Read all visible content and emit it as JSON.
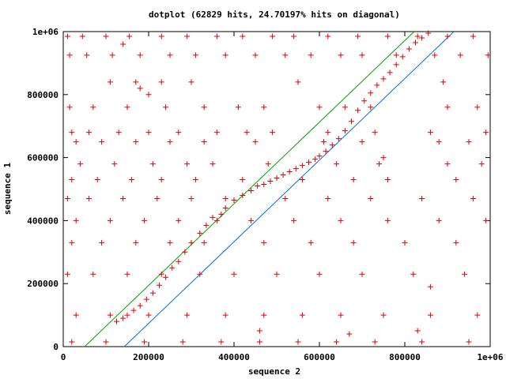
{
  "chart_data": {
    "type": "scatter",
    "title": "dotplot (62829 hits, 24.70197% hits on diagonal)",
    "xlabel": "sequence 2",
    "ylabel": "sequence 1",
    "xlim": [
      0,
      1000000
    ],
    "ylim": [
      0,
      1000000
    ],
    "x_ticks": [
      {
        "value": 0,
        "label": "0"
      },
      {
        "value": 200000,
        "label": "200000"
      },
      {
        "value": 400000,
        "label": "400000"
      },
      {
        "value": 600000,
        "label": "600000"
      },
      {
        "value": 800000,
        "label": "800000"
      },
      {
        "value": 1000000,
        "label": "1e+06"
      }
    ],
    "y_ticks": [
      {
        "value": 0,
        "label": "0"
      },
      {
        "value": 200000,
        "label": "200000"
      },
      {
        "value": 400000,
        "label": "400000"
      },
      {
        "value": 600000,
        "label": "600000"
      },
      {
        "value": 800000,
        "label": "800000"
      },
      {
        "value": 1000000,
        "label": "1e+06"
      }
    ],
    "grid": false,
    "colors": {
      "points": "#e00000",
      "upper_line": "#00a000",
      "lower_line": "#0070e0"
    },
    "lines": [
      {
        "color": "#00a000",
        "points": [
          [
            50000,
            0
          ],
          [
            822000,
            1000000
          ]
        ]
      },
      {
        "color": "#0070e0",
        "points": [
          [
            143000,
            0
          ],
          [
            915000,
            1000000
          ]
        ]
      }
    ],
    "diagonal_points": [
      [
        125000,
        80000
      ],
      [
        140000,
        90000
      ],
      [
        150000,
        100000
      ],
      [
        165000,
        115000
      ],
      [
        180000,
        130000
      ],
      [
        195000,
        150000
      ],
      [
        210000,
        170000
      ],
      [
        225000,
        195000
      ],
      [
        240000,
        220000
      ],
      [
        255000,
        250000
      ],
      [
        270000,
        270000
      ],
      [
        285000,
        300000
      ],
      [
        300000,
        330000
      ],
      [
        320000,
        360000
      ],
      [
        335000,
        385000
      ],
      [
        350000,
        410000
      ],
      [
        370000,
        420000
      ],
      [
        380000,
        440000
      ],
      [
        400000,
        465000
      ],
      [
        420000,
        480000
      ],
      [
        440000,
        495000
      ],
      [
        455000,
        510000
      ],
      [
        470000,
        515000
      ],
      [
        485000,
        525000
      ],
      [
        500000,
        535000
      ],
      [
        515000,
        545000
      ],
      [
        530000,
        555000
      ],
      [
        545000,
        565000
      ],
      [
        560000,
        575000
      ],
      [
        575000,
        585000
      ],
      [
        590000,
        595000
      ],
      [
        600000,
        605000
      ],
      [
        615000,
        620000
      ],
      [
        630000,
        640000
      ],
      [
        645000,
        660000
      ],
      [
        660000,
        685000
      ],
      [
        675000,
        715000
      ],
      [
        690000,
        750000
      ],
      [
        705000,
        780000
      ],
      [
        720000,
        805000
      ],
      [
        735000,
        830000
      ],
      [
        750000,
        850000
      ],
      [
        765000,
        870000
      ],
      [
        780000,
        895000
      ],
      [
        795000,
        920000
      ],
      [
        810000,
        945000
      ],
      [
        825000,
        965000
      ],
      [
        840000,
        980000
      ],
      [
        855000,
        995000
      ]
    ],
    "scatter_points": [
      [
        10000,
        985000
      ],
      [
        45000,
        985000
      ],
      [
        100000,
        985000
      ],
      [
        155000,
        985000
      ],
      [
        230000,
        985000
      ],
      [
        290000,
        985000
      ],
      [
        360000,
        985000
      ],
      [
        420000,
        985000
      ],
      [
        490000,
        985000
      ],
      [
        540000,
        985000
      ],
      [
        620000,
        985000
      ],
      [
        690000,
        985000
      ],
      [
        760000,
        985000
      ],
      [
        830000,
        985000
      ],
      [
        900000,
        985000
      ],
      [
        960000,
        985000
      ],
      [
        15000,
        925000
      ],
      [
        55000,
        925000
      ],
      [
        115000,
        925000
      ],
      [
        180000,
        925000
      ],
      [
        250000,
        925000
      ],
      [
        310000,
        925000
      ],
      [
        380000,
        925000
      ],
      [
        450000,
        925000
      ],
      [
        520000,
        925000
      ],
      [
        580000,
        925000
      ],
      [
        650000,
        925000
      ],
      [
        700000,
        925000
      ],
      [
        780000,
        925000
      ],
      [
        870000,
        925000
      ],
      [
        930000,
        925000
      ],
      [
        995000,
        925000
      ],
      [
        110000,
        840000
      ],
      [
        170000,
        840000
      ],
      [
        230000,
        840000
      ],
      [
        300000,
        840000
      ],
      [
        550000,
        840000
      ],
      [
        890000,
        840000
      ],
      [
        15000,
        760000
      ],
      [
        70000,
        760000
      ],
      [
        150000,
        760000
      ],
      [
        240000,
        760000
      ],
      [
        330000,
        760000
      ],
      [
        410000,
        760000
      ],
      [
        470000,
        760000
      ],
      [
        600000,
        760000
      ],
      [
        660000,
        760000
      ],
      [
        720000,
        760000
      ],
      [
        900000,
        760000
      ],
      [
        970000,
        760000
      ],
      [
        20000,
        680000
      ],
      [
        60000,
        680000
      ],
      [
        130000,
        680000
      ],
      [
        200000,
        680000
      ],
      [
        270000,
        680000
      ],
      [
        360000,
        680000
      ],
      [
        430000,
        680000
      ],
      [
        490000,
        680000
      ],
      [
        620000,
        680000
      ],
      [
        730000,
        680000
      ],
      [
        860000,
        680000
      ],
      [
        990000,
        680000
      ],
      [
        30000,
        650000
      ],
      [
        90000,
        650000
      ],
      [
        170000,
        650000
      ],
      [
        250000,
        650000
      ],
      [
        330000,
        650000
      ],
      [
        450000,
        650000
      ],
      [
        610000,
        650000
      ],
      [
        700000,
        650000
      ],
      [
        880000,
        650000
      ],
      [
        950000,
        650000
      ],
      [
        40000,
        580000
      ],
      [
        120000,
        580000
      ],
      [
        210000,
        580000
      ],
      [
        290000,
        580000
      ],
      [
        350000,
        580000
      ],
      [
        480000,
        580000
      ],
      [
        640000,
        580000
      ],
      [
        740000,
        580000
      ],
      [
        900000,
        580000
      ],
      [
        980000,
        580000
      ],
      [
        20000,
        530000
      ],
      [
        80000,
        530000
      ],
      [
        160000,
        530000
      ],
      [
        230000,
        530000
      ],
      [
        310000,
        530000
      ],
      [
        420000,
        530000
      ],
      [
        560000,
        530000
      ],
      [
        680000,
        530000
      ],
      [
        760000,
        530000
      ],
      [
        920000,
        530000
      ],
      [
        10000,
        470000
      ],
      [
        60000,
        470000
      ],
      [
        140000,
        470000
      ],
      [
        220000,
        470000
      ],
      [
        300000,
        470000
      ],
      [
        380000,
        470000
      ],
      [
        520000,
        470000
      ],
      [
        620000,
        470000
      ],
      [
        720000,
        470000
      ],
      [
        840000,
        470000
      ],
      [
        960000,
        470000
      ],
      [
        30000,
        400000
      ],
      [
        110000,
        400000
      ],
      [
        190000,
        400000
      ],
      [
        270000,
        400000
      ],
      [
        360000,
        400000
      ],
      [
        440000,
        400000
      ],
      [
        540000,
        400000
      ],
      [
        650000,
        400000
      ],
      [
        760000,
        400000
      ],
      [
        880000,
        400000
      ],
      [
        990000,
        400000
      ],
      [
        20000,
        330000
      ],
      [
        90000,
        330000
      ],
      [
        170000,
        330000
      ],
      [
        250000,
        330000
      ],
      [
        330000,
        330000
      ],
      [
        470000,
        330000
      ],
      [
        580000,
        330000
      ],
      [
        680000,
        330000
      ],
      [
        800000,
        330000
      ],
      [
        920000,
        330000
      ],
      [
        10000,
        230000
      ],
      [
        70000,
        230000
      ],
      [
        150000,
        230000
      ],
      [
        230000,
        230000
      ],
      [
        320000,
        230000
      ],
      [
        400000,
        230000
      ],
      [
        500000,
        230000
      ],
      [
        600000,
        230000
      ],
      [
        700000,
        230000
      ],
      [
        820000,
        230000
      ],
      [
        940000,
        230000
      ],
      [
        30000,
        100000
      ],
      [
        110000,
        100000
      ],
      [
        200000,
        100000
      ],
      [
        290000,
        100000
      ],
      [
        380000,
        100000
      ],
      [
        470000,
        100000
      ],
      [
        560000,
        100000
      ],
      [
        650000,
        100000
      ],
      [
        750000,
        100000
      ],
      [
        860000,
        100000
      ],
      [
        970000,
        100000
      ],
      [
        20000,
        15000
      ],
      [
        100000,
        15000
      ],
      [
        190000,
        15000
      ],
      [
        280000,
        15000
      ],
      [
        370000,
        15000
      ],
      [
        460000,
        15000
      ],
      [
        550000,
        15000
      ],
      [
        640000,
        15000
      ],
      [
        730000,
        15000
      ],
      [
        840000,
        15000
      ],
      [
        950000,
        15000
      ],
      [
        460000,
        50000
      ],
      [
        830000,
        50000
      ],
      [
        670000,
        40000
      ],
      [
        140000,
        960000
      ],
      [
        200000,
        800000
      ],
      [
        180000,
        820000
      ],
      [
        750000,
        600000
      ],
      [
        860000,
        190000
      ]
    ]
  }
}
